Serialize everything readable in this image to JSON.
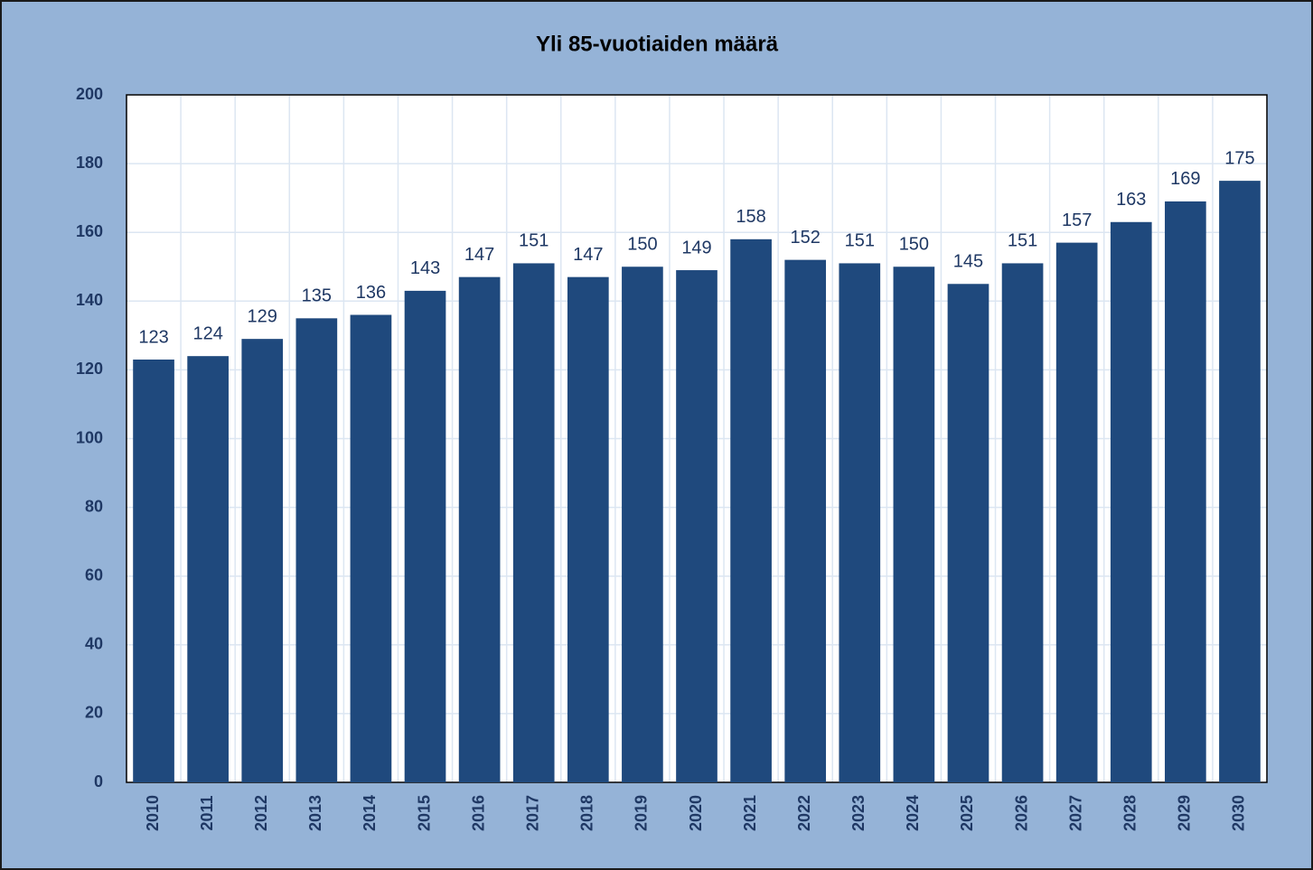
{
  "chart_data": {
    "type": "bar",
    "title": "Yli 85-vuotiaiden määrä",
    "categories": [
      "2010",
      "2011",
      "2012",
      "2013",
      "2014",
      "2015",
      "2016",
      "2017",
      "2018",
      "2019",
      "2020",
      "2021",
      "2022",
      "2023",
      "2024",
      "2025",
      "2026",
      "2027",
      "2028",
      "2029",
      "2030"
    ],
    "values": [
      123,
      124,
      129,
      135,
      136,
      143,
      147,
      151,
      147,
      150,
      149,
      158,
      152,
      151,
      150,
      145,
      151,
      157,
      163,
      169,
      175
    ],
    "color": "#1f497d",
    "ylim": [
      0,
      200
    ],
    "yticks": [
      0,
      20,
      40,
      60,
      80,
      100,
      120,
      140,
      160,
      180,
      200
    ],
    "grid": true
  }
}
